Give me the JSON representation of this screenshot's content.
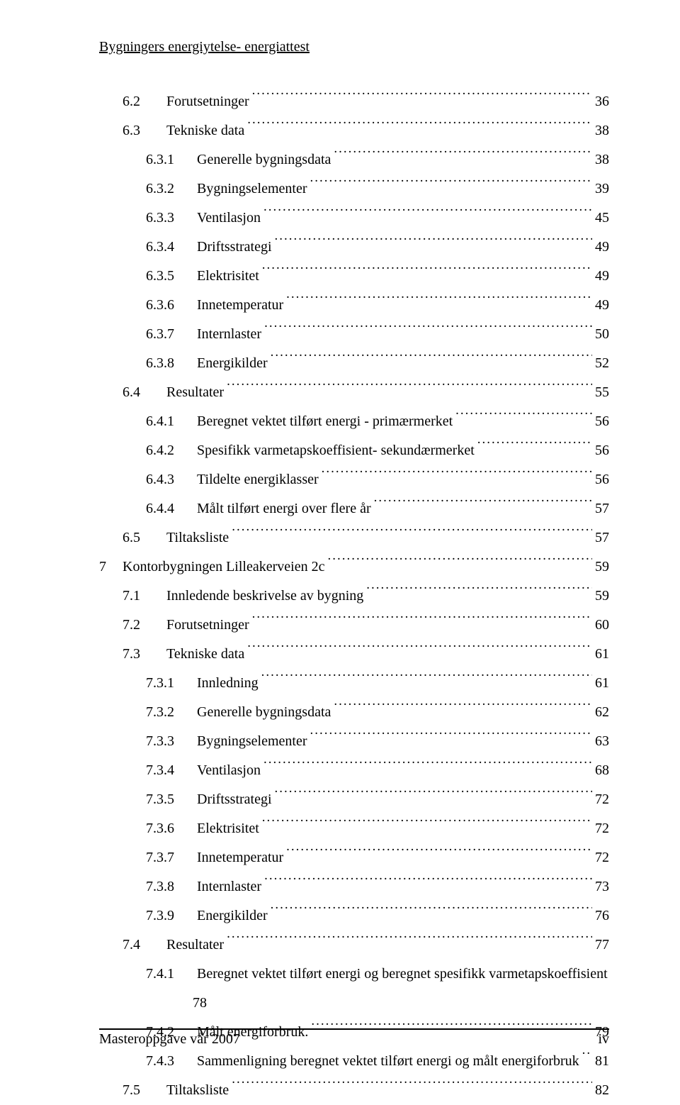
{
  "header": "Bygningers energiytelse- energiattest",
  "footer_left": "Masteroppgave vår 2007",
  "footer_right": "iv",
  "toc": [
    {
      "indent": 1,
      "num": "6.2",
      "label": "Forutsetninger",
      "page": "36"
    },
    {
      "indent": 1,
      "num": "6.3",
      "label": "Tekniske data",
      "page": "38"
    },
    {
      "indent": 2,
      "num": "6.3.1",
      "label": "Generelle bygningsdata",
      "page": "38"
    },
    {
      "indent": 2,
      "num": "6.3.2",
      "label": "Bygningselementer",
      "page": "39"
    },
    {
      "indent": 2,
      "num": "6.3.3",
      "label": "Ventilasjon",
      "page": "45"
    },
    {
      "indent": 2,
      "num": "6.3.4",
      "label": "Driftsstrategi",
      "page": "49"
    },
    {
      "indent": 2,
      "num": "6.3.5",
      "label": "Elektrisitet",
      "page": "49"
    },
    {
      "indent": 2,
      "num": "6.3.6",
      "label": "Innetemperatur",
      "page": "49"
    },
    {
      "indent": 2,
      "num": "6.3.7",
      "label": "Internlaster",
      "page": "50"
    },
    {
      "indent": 2,
      "num": "6.3.8",
      "label": "Energikilder",
      "page": "52"
    },
    {
      "indent": 1,
      "num": "6.4",
      "label": "Resultater",
      "page": "55"
    },
    {
      "indent": 2,
      "num": "6.4.1",
      "label": "Beregnet vektet tilført energi - primærmerket",
      "page": "56"
    },
    {
      "indent": 2,
      "num": "6.4.2",
      "label": "Spesifikk varmetapskoeffisient- sekundærmerket",
      "page": "56"
    },
    {
      "indent": 2,
      "num": "6.4.3",
      "label": "Tildelte energiklasser",
      "page": "56"
    },
    {
      "indent": 2,
      "num": "6.4.4",
      "label": "Målt tilført energi over flere år",
      "page": "57"
    },
    {
      "indent": 1,
      "num": "6.5",
      "label": "Tiltaksliste",
      "page": "57"
    },
    {
      "indent": 0,
      "num": "7",
      "label": "Kontorbygningen Lilleakerveien 2c",
      "page": "59"
    },
    {
      "indent": 1,
      "num": "7.1",
      "label": "Innledende beskrivelse av bygning",
      "page": "59"
    },
    {
      "indent": 1,
      "num": "7.2",
      "label": "Forutsetninger",
      "page": "60"
    },
    {
      "indent": 1,
      "num": "7.3",
      "label": "Tekniske data",
      "page": "61"
    },
    {
      "indent": 2,
      "num": "7.3.1",
      "label": "Innledning",
      "page": "61"
    },
    {
      "indent": 2,
      "num": "7.3.2",
      "label": "Generelle bygningsdata",
      "page": "62"
    },
    {
      "indent": 2,
      "num": "7.3.3",
      "label": "Bygningselementer",
      "page": "63"
    },
    {
      "indent": 2,
      "num": "7.3.4",
      "label": "Ventilasjon",
      "page": "68"
    },
    {
      "indent": 2,
      "num": "7.3.5",
      "label": "Driftsstrategi",
      "page": "72"
    },
    {
      "indent": 2,
      "num": "7.3.6",
      "label": "Elektrisitet",
      "page": "72"
    },
    {
      "indent": 2,
      "num": "7.3.7",
      "label": "Innetemperatur",
      "page": "72"
    },
    {
      "indent": 2,
      "num": "7.3.8",
      "label": "Internlaster",
      "page": "73"
    },
    {
      "indent": 2,
      "num": "7.3.9",
      "label": "Energikilder",
      "page": "76"
    },
    {
      "indent": 1,
      "num": "7.4",
      "label": "Resultater",
      "page": "77"
    },
    {
      "indent": 2,
      "num": "7.4.1",
      "label": "Beregnet vektet tilført energi og beregnet spesifikk varmetapskoeffisient",
      "page": "",
      "nodots": true
    },
    {
      "indent": 3,
      "num": "",
      "label": "78",
      "page": "",
      "nodots": true
    },
    {
      "indent": 2,
      "num": "7.4.2",
      "label": "Målt energiforbruk.",
      "page": "79"
    },
    {
      "indent": 2,
      "num": "7.4.3",
      "label": "Sammenligning beregnet vektet tilført energi og målt energiforbruk",
      "page": "81"
    },
    {
      "indent": 1,
      "num": "7.5",
      "label": "Tiltaksliste",
      "page": "82"
    }
  ]
}
